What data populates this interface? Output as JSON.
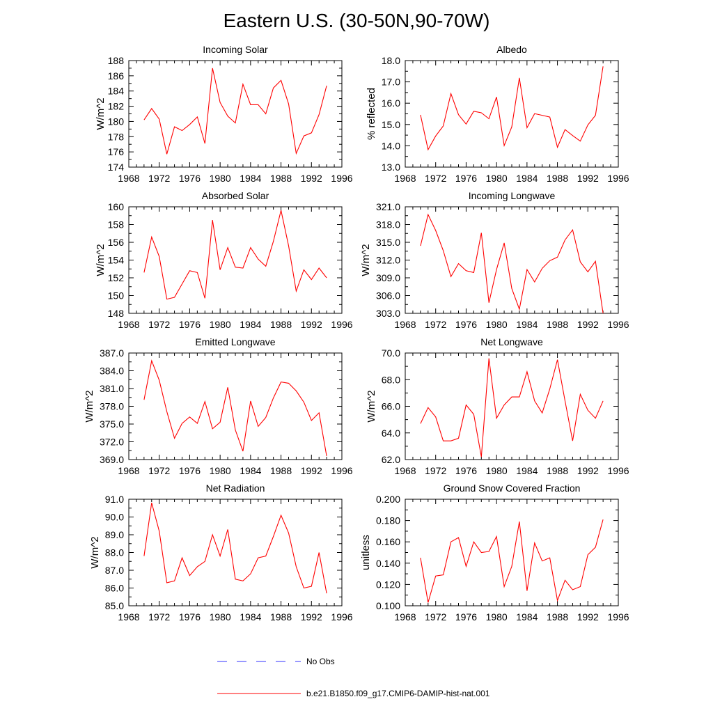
{
  "page": {
    "title": "Eastern U.S. (30-50N,90-70W)"
  },
  "legend": {
    "obs_label": "No Obs",
    "model_label": "b.e21.B1850.f09_g17.CMIP6-DAMIP-hist-nat.001",
    "obs_color": "#3030ff",
    "model_color": "#ff0000"
  },
  "chart_data": [
    {
      "type": "line",
      "title": "Incoming Solar",
      "ylabel": "W/m^2",
      "xlim": [
        1968,
        1996
      ],
      "ylim": [
        174,
        188
      ],
      "xticks": [
        "1968",
        "1972",
        "1976",
        "1980",
        "1984",
        "1988",
        "1992",
        "1996"
      ],
      "yticks": [
        "174",
        "176",
        "178",
        "180",
        "182",
        "184",
        "186",
        "188"
      ],
      "grid": false,
      "series": [
        {
          "color": "#ff0000",
          "x": [
            1970,
            1971,
            1972,
            1973,
            1974,
            1975,
            1976,
            1977,
            1978,
            1979,
            1980,
            1981,
            1982,
            1983,
            1984,
            1985,
            1986,
            1987,
            1988,
            1989,
            1990,
            1991,
            1992,
            1993,
            1994
          ],
          "y": [
            180.2,
            181.7,
            180.3,
            175.7,
            179.3,
            178.8,
            179.6,
            180.6,
            177.1,
            187.0,
            182.5,
            180.7,
            179.8,
            184.9,
            182.2,
            182.2,
            181.0,
            184.4,
            185.4,
            182.3,
            175.8,
            178.1,
            178.5,
            180.9,
            184.7
          ]
        }
      ]
    },
    {
      "type": "line",
      "title": "Albedo",
      "ylabel": "% reflected",
      "xlim": [
        1968,
        1996
      ],
      "ylim": [
        13.0,
        18.0
      ],
      "xticks": [
        "1968",
        "1972",
        "1976",
        "1980",
        "1984",
        "1988",
        "1992",
        "1996"
      ],
      "yticks": [
        "13.0",
        "14.0",
        "15.0",
        "16.0",
        "17.0",
        "18.0"
      ],
      "grid": false,
      "series": [
        {
          "color": "#ff0000",
          "x": [
            1970,
            1971,
            1972,
            1973,
            1974,
            1975,
            1976,
            1977,
            1978,
            1979,
            1980,
            1981,
            1982,
            1983,
            1984,
            1985,
            1986,
            1987,
            1988,
            1989,
            1990,
            1991,
            1992,
            1993,
            1994
          ],
          "y": [
            15.45,
            13.82,
            14.46,
            14.93,
            16.45,
            15.46,
            15.02,
            15.62,
            15.55,
            15.27,
            16.29,
            14.01,
            14.89,
            17.19,
            14.85,
            15.51,
            15.43,
            15.35,
            13.93,
            14.76,
            14.48,
            14.22,
            14.98,
            15.43,
            17.73
          ]
        }
      ]
    },
    {
      "type": "line",
      "title": "Absorbed Solar",
      "ylabel": "W/m^2",
      "xlim": [
        1968,
        1996
      ],
      "ylim": [
        148,
        160
      ],
      "xticks": [
        "1968",
        "1972",
        "1976",
        "1980",
        "1984",
        "1988",
        "1992",
        "1996"
      ],
      "yticks": [
        "148",
        "150",
        "152",
        "154",
        "156",
        "158",
        "160"
      ],
      "grid": false,
      "series": [
        {
          "color": "#ff0000",
          "x": [
            1970,
            1971,
            1972,
            1973,
            1974,
            1975,
            1976,
            1977,
            1978,
            1979,
            1980,
            1981,
            1982,
            1983,
            1984,
            1985,
            1986,
            1987,
            1988,
            1989,
            1990,
            1991,
            1992,
            1993,
            1994
          ],
          "y": [
            152.6,
            156.6,
            154.4,
            149.6,
            149.8,
            151.3,
            152.8,
            152.6,
            149.7,
            158.5,
            152.9,
            155.4,
            153.2,
            153.1,
            155.4,
            154.1,
            153.3,
            156.1,
            159.6,
            155.6,
            150.5,
            152.9,
            151.8,
            153.1,
            152.0
          ]
        }
      ]
    },
    {
      "type": "line",
      "title": "Incoming Longwave",
      "ylabel": "W/m^2",
      "xlim": [
        1968,
        1996
      ],
      "ylim": [
        303.0,
        321.0
      ],
      "xticks": [
        "1968",
        "1972",
        "1976",
        "1980",
        "1984",
        "1988",
        "1992",
        "1996"
      ],
      "yticks": [
        "303.0",
        "306.0",
        "309.0",
        "312.0",
        "315.0",
        "318.0",
        "321.0"
      ],
      "grid": false,
      "series": [
        {
          "color": "#ff0000",
          "x": [
            1970,
            1971,
            1972,
            1973,
            1974,
            1975,
            1976,
            1977,
            1978,
            1979,
            1980,
            1981,
            1982,
            1983,
            1984,
            1985,
            1986,
            1987,
            1988,
            1989,
            1990,
            1991,
            1992,
            1993,
            1994
          ],
          "y": [
            314.4,
            319.7,
            317.0,
            313.6,
            309.2,
            311.4,
            310.2,
            309.9,
            316.6,
            304.8,
            310.4,
            314.9,
            307.2,
            303.7,
            310.4,
            308.3,
            310.6,
            311.9,
            312.5,
            315.4,
            317.1,
            311.7,
            310.0,
            311.8,
            303.0
          ]
        }
      ]
    },
    {
      "type": "line",
      "title": "Emitted Longwave",
      "ylabel": "W/m^2",
      "xlim": [
        1968,
        1996
      ],
      "ylim": [
        369.0,
        387.0
      ],
      "xticks": [
        "1968",
        "1972",
        "1976",
        "1980",
        "1984",
        "1988",
        "1992",
        "1996"
      ],
      "yticks": [
        "369.0",
        "372.0",
        "375.0",
        "378.0",
        "381.0",
        "384.0",
        "387.0"
      ],
      "grid": false,
      "series": [
        {
          "color": "#ff0000",
          "x": [
            1970,
            1971,
            1972,
            1973,
            1974,
            1975,
            1976,
            1977,
            1978,
            1979,
            1980,
            1981,
            1982,
            1983,
            1984,
            1985,
            1986,
            1987,
            1988,
            1989,
            1990,
            1991,
            1992,
            1993,
            1994
          ],
          "y": [
            379.1,
            385.7,
            382.4,
            377.1,
            372.6,
            375.1,
            376.2,
            375.1,
            378.8,
            374.2,
            375.3,
            381.2,
            374.0,
            370.4,
            378.9,
            374.6,
            376.1,
            379.4,
            382.1,
            381.9,
            380.6,
            378.7,
            375.6,
            376.9,
            369.6
          ]
        }
      ]
    },
    {
      "type": "line",
      "title": "Net Longwave",
      "ylabel": "W/m^2",
      "xlim": [
        1968,
        1996
      ],
      "ylim": [
        62.0,
        70.0
      ],
      "xticks": [
        "1968",
        "1972",
        "1976",
        "1980",
        "1984",
        "1988",
        "1992",
        "1996"
      ],
      "yticks": [
        "62.0",
        "64.0",
        "66.0",
        "68.0",
        "70.0"
      ],
      "grid": false,
      "series": [
        {
          "color": "#ff0000",
          "x": [
            1970,
            1971,
            1972,
            1973,
            1974,
            1975,
            1976,
            1977,
            1978,
            1979,
            1980,
            1981,
            1982,
            1983,
            1984,
            1985,
            1986,
            1987,
            1988,
            1989,
            1990,
            1991,
            1992,
            1993,
            1994
          ],
          "y": [
            64.7,
            65.9,
            65.2,
            63.4,
            63.4,
            63.6,
            66.1,
            65.4,
            62.2,
            69.6,
            65.1,
            66.1,
            66.7,
            66.7,
            68.6,
            66.4,
            65.5,
            67.3,
            69.5,
            66.4,
            63.4,
            66.9,
            65.7,
            65.1,
            66.4
          ]
        }
      ]
    },
    {
      "type": "line",
      "title": "Net Radiation",
      "ylabel": "W/m^2",
      "xlim": [
        1968,
        1996
      ],
      "ylim": [
        85.0,
        91.0
      ],
      "xticks": [
        "1968",
        "1972",
        "1976",
        "1980",
        "1984",
        "1988",
        "1992",
        "1996"
      ],
      "yticks": [
        "85.0",
        "86.0",
        "87.0",
        "88.0",
        "89.0",
        "90.0",
        "91.0"
      ],
      "grid": false,
      "series": [
        {
          "color": "#ff0000",
          "x": [
            1970,
            1971,
            1972,
            1973,
            1974,
            1975,
            1976,
            1977,
            1978,
            1979,
            1980,
            1981,
            1982,
            1983,
            1984,
            1985,
            1986,
            1987,
            1988,
            1989,
            1990,
            1991,
            1992,
            1993,
            1994
          ],
          "y": [
            87.8,
            90.8,
            89.2,
            86.3,
            86.4,
            87.7,
            86.7,
            87.2,
            87.5,
            89.0,
            87.8,
            89.3,
            86.5,
            86.4,
            86.8,
            87.7,
            87.8,
            88.9,
            90.1,
            89.1,
            87.2,
            86.0,
            86.1,
            88.0,
            85.7
          ]
        }
      ]
    },
    {
      "type": "line",
      "title": "Ground Snow Covered Fraction",
      "ylabel": "unitless",
      "xlim": [
        1968,
        1996
      ],
      "ylim": [
        0.1,
        0.2
      ],
      "xticks": [
        "1968",
        "1972",
        "1976",
        "1980",
        "1984",
        "1988",
        "1992",
        "1996"
      ],
      "yticks": [
        "0.100",
        "0.120",
        "0.140",
        "0.160",
        "0.180",
        "0.200"
      ],
      "grid": false,
      "series": [
        {
          "color": "#ff0000",
          "x": [
            1970,
            1971,
            1972,
            1973,
            1974,
            1975,
            1976,
            1977,
            1978,
            1979,
            1980,
            1981,
            1982,
            1983,
            1984,
            1985,
            1986,
            1987,
            1988,
            1989,
            1990,
            1991,
            1992,
            1993,
            1994
          ],
          "y": [
            0.145,
            0.103,
            0.128,
            0.129,
            0.16,
            0.164,
            0.137,
            0.16,
            0.15,
            0.151,
            0.165,
            0.118,
            0.137,
            0.179,
            0.114,
            0.159,
            0.142,
            0.145,
            0.105,
            0.124,
            0.115,
            0.118,
            0.148,
            0.155,
            0.181
          ]
        }
      ]
    }
  ]
}
